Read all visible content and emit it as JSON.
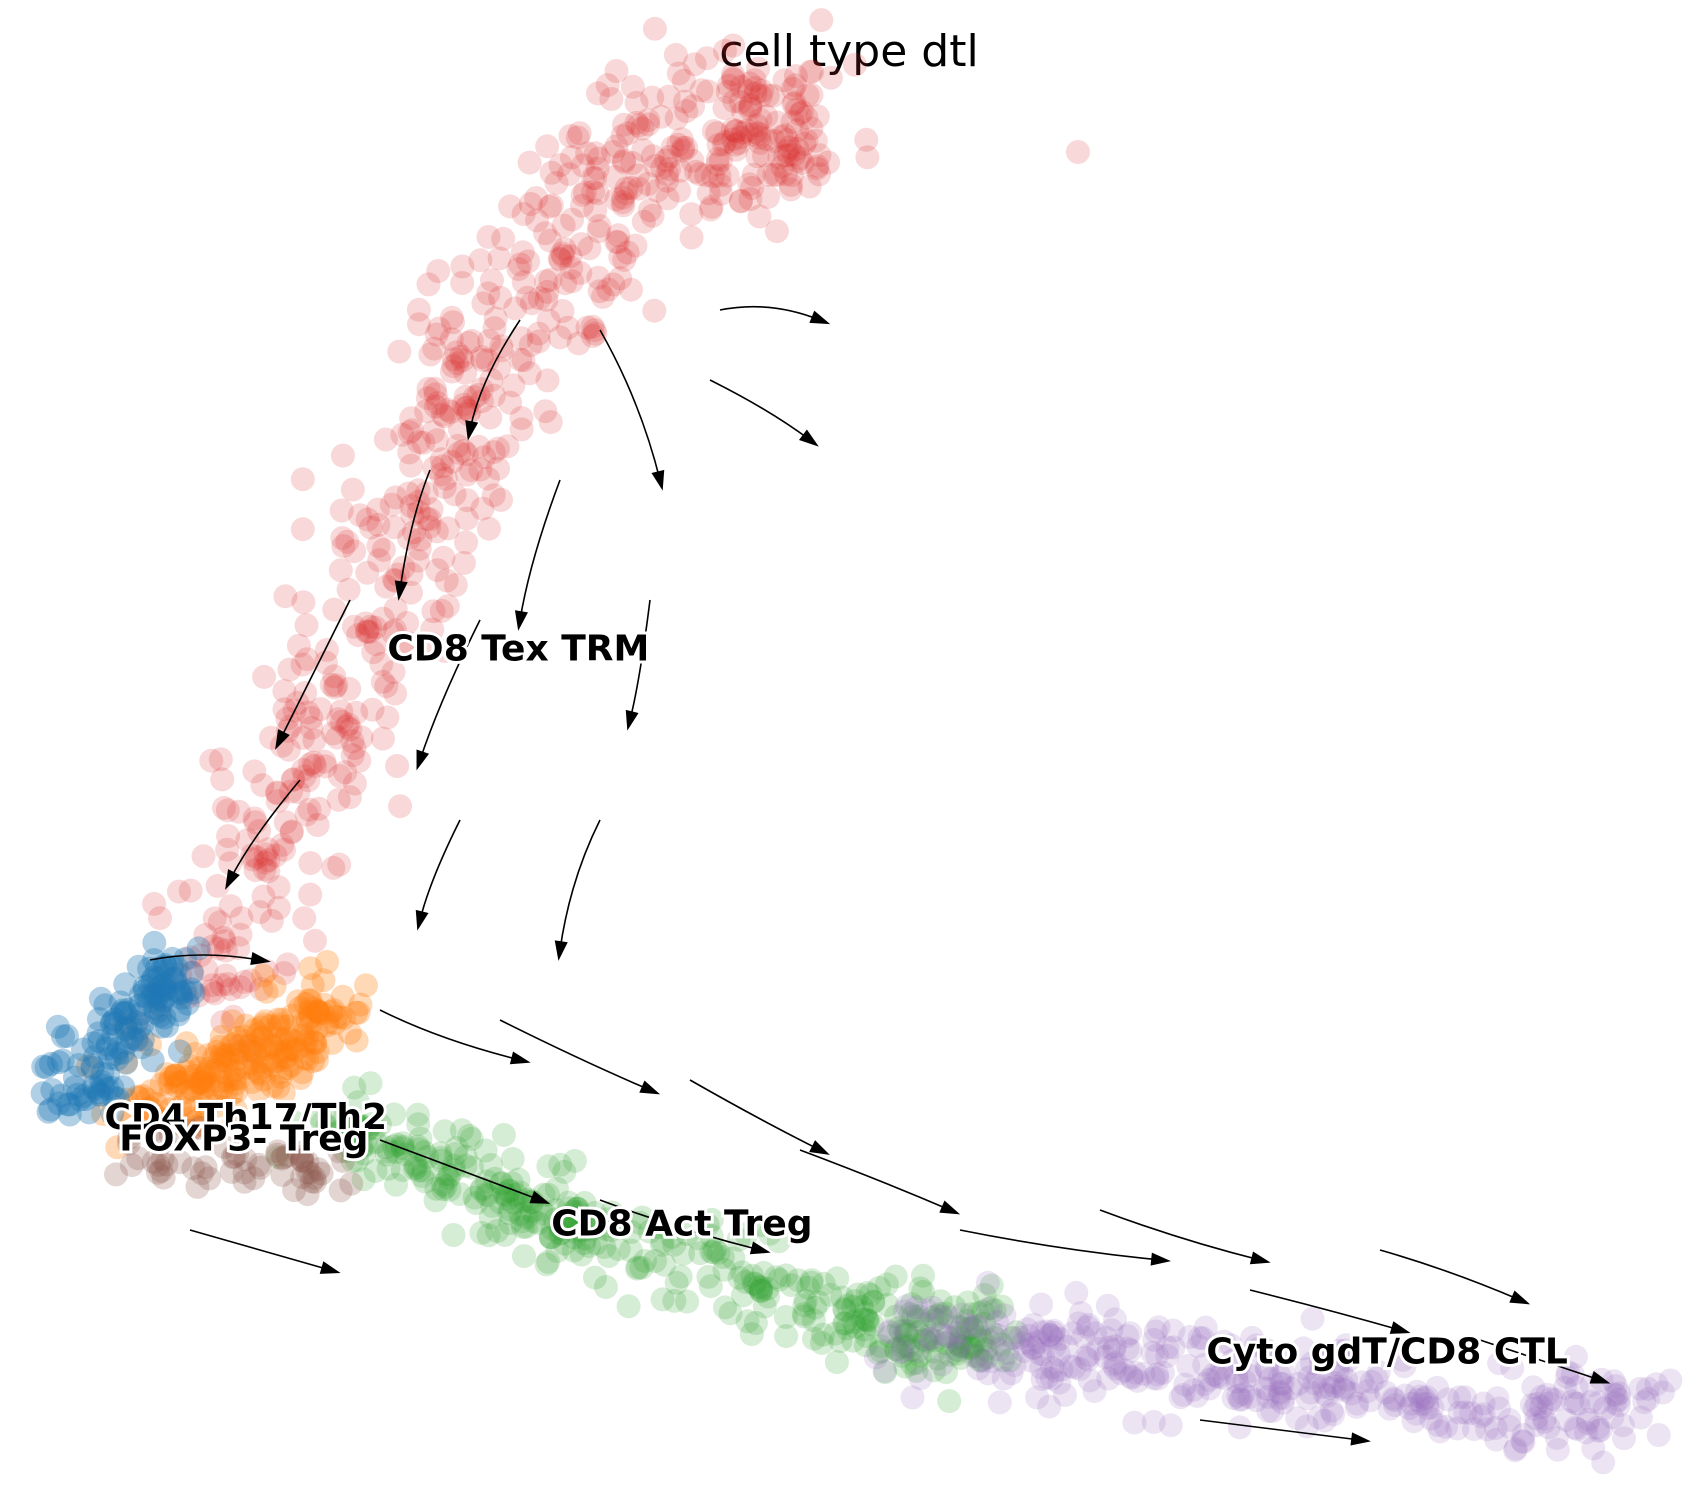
{
  "title": "cell type dtl",
  "chart_data": {
    "type": "scatter",
    "title": "cell type dtl",
    "xlabel": "",
    "ylabel": "",
    "axes_visible": false,
    "grid": false,
    "overlay": "velocity stream lines with arrowheads",
    "clusters": [
      {
        "name": "CD8 Tex TRM",
        "color": "#d62728",
        "label_pos": [
          -2.6,
          5.6
        ],
        "n_points": 650
      },
      {
        "name": "CD4 Th17/Th2",
        "color": "#ff7f0e",
        "label_pos": [
          -4.5,
          1.2
        ],
        "n_points": 220
      },
      {
        "name": "FOXP3- Treg",
        "color": "#1f77b4",
        "label_pos": [
          -4.4,
          1.0
        ],
        "n_points": 140
      },
      {
        "name": "CD8 Act Treg",
        "color": "#2ca02c",
        "label_pos": [
          -1.5,
          0.2
        ],
        "n_points": 420
      },
      {
        "name": "Cyto gdT/CD8 CTL",
        "color": "#9467bd",
        "label_pos": [
          2.9,
          -1.0
        ],
        "n_points": 360
      },
      {
        "name": "",
        "color": "#8c564b",
        "label_pos": null,
        "n_points": 60
      }
    ],
    "xlim": [
      -5.0,
      6.0
    ],
    "ylim": [
      -2.0,
      11.0
    ]
  }
}
